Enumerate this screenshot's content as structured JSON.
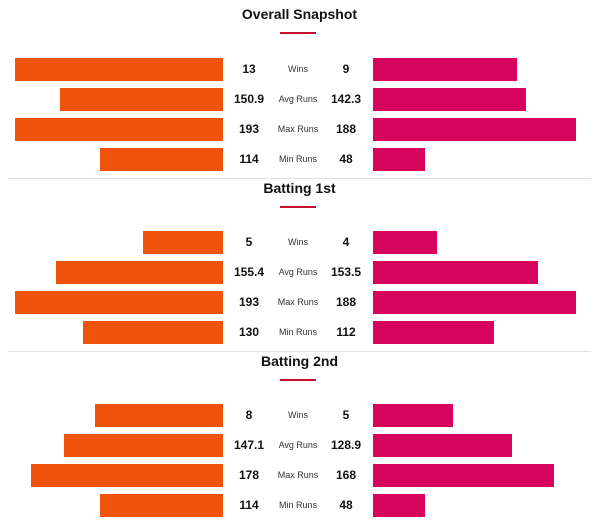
{
  "colors": {
    "team_a_bar": "#ef5208",
    "team_b_bar": "#d6045d",
    "title_underline": "#c8102e"
  },
  "sections": [
    {
      "title": "Overall Snapshot",
      "rows": [
        {
          "label": "Wins",
          "left": "13",
          "right": "9",
          "left_value": 13,
          "right_value": 9,
          "max": 13
        },
        {
          "label": "Avg Runs",
          "left": "150.9",
          "right": "142.3",
          "left_value": 150.9,
          "right_value": 142.3,
          "max": 193
        },
        {
          "label": "Max Runs",
          "left": "193",
          "right": "188",
          "left_value": 193,
          "right_value": 188,
          "max": 193
        },
        {
          "label": "Min Runs",
          "left": "114",
          "right": "48",
          "left_value": 114,
          "right_value": 48,
          "max": 193
        }
      ]
    },
    {
      "title": "Batting 1st",
      "rows": [
        {
          "label": "Wins",
          "left": "5",
          "right": "4",
          "left_value": 5,
          "right_value": 4,
          "max": 13
        },
        {
          "label": "Avg Runs",
          "left": "155.4",
          "right": "153.5",
          "left_value": 155.4,
          "right_value": 153.5,
          "max": 193
        },
        {
          "label": "Max Runs",
          "left": "193",
          "right": "188",
          "left_value": 193,
          "right_value": 188,
          "max": 193
        },
        {
          "label": "Min Runs",
          "left": "130",
          "right": "112",
          "left_value": 130,
          "right_value": 112,
          "max": 193
        }
      ]
    },
    {
      "title": "Batting 2nd",
      "rows": [
        {
          "label": "Wins",
          "left": "8",
          "right": "5",
          "left_value": 8,
          "right_value": 5,
          "max": 13
        },
        {
          "label": "Avg Runs",
          "left": "147.1",
          "right": "128.9",
          "left_value": 147.1,
          "right_value": 128.9,
          "max": 193
        },
        {
          "label": "Max Runs",
          "left": "178",
          "right": "168",
          "left_value": 178,
          "right_value": 168,
          "max": 193
        },
        {
          "label": "Min Runs",
          "left": "114",
          "right": "48",
          "left_value": 114,
          "right_value": 48,
          "max": 193
        }
      ]
    }
  ]
}
